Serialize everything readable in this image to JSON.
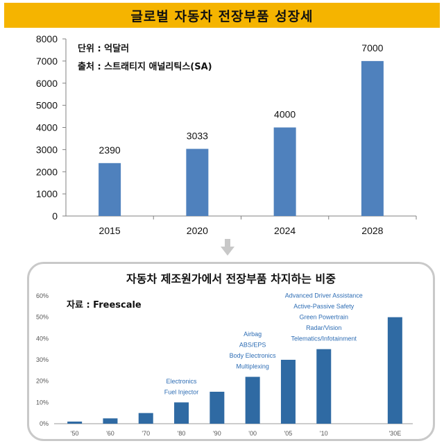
{
  "banner_title": "글로벌 자동차 전장부품 성장세",
  "chart_data": [
    {
      "type": "bar",
      "title": "글로벌 자동차 전장부품 성장세",
      "categories": [
        "2015",
        "2020",
        "2024",
        "2028"
      ],
      "values": [
        2390,
        3033,
        4000,
        7000
      ],
      "data_labels": [
        "2390",
        "3033",
        "4000",
        "7000"
      ],
      "ylim": [
        0,
        8000
      ],
      "yticks": [
        "0",
        "1000",
        "2000",
        "3000",
        "4000",
        "5000",
        "6000",
        "7000",
        "8000"
      ],
      "ytick_values": [
        0,
        1000,
        2000,
        3000,
        4000,
        5000,
        6000,
        7000,
        8000
      ],
      "annotations": [
        "단위 : 억달러",
        "출처 : 스트래티지 애널리틱스(SA)"
      ],
      "bar_color": "#4f81bd",
      "xlabel": "",
      "ylabel": ""
    },
    {
      "type": "bar",
      "title": "자동차 제조원가에서 전장부품 차지하는 비중",
      "source_note": "자료 : Freescale",
      "categories": [
        "'50",
        "'60",
        "'70",
        "'80",
        "'90",
        "'00",
        "'05",
        "'10",
        "'30E"
      ],
      "values": [
        1,
        2.5,
        5,
        10,
        15,
        22,
        30,
        35,
        50
      ],
      "ylim": [
        0,
        60
      ],
      "yticks": [
        "0%",
        "10%",
        "20%",
        "30%",
        "40%",
        "50%",
        "60%"
      ],
      "ytick_values": [
        0,
        10,
        20,
        30,
        40,
        50,
        60
      ],
      "bar_color": "#2f6aa3",
      "annotation_color": "#2e6db4",
      "annotations": [
        {
          "category": "'80",
          "lines": [
            "Electronics",
            "Fuel Injector"
          ]
        },
        {
          "category": "'00",
          "lines": [
            "Airbag",
            "ABS/EPS",
            "Body Electronics",
            "Multiplexing"
          ]
        },
        {
          "category": "'10",
          "lines": [
            "Advanced Driver Assistance",
            "Active-Passive Safety",
            "Green Powertrain",
            "Radar/Vision",
            "Telematics/Infotainment"
          ]
        }
      ]
    }
  ],
  "arrow_icon": "down-arrow-icon"
}
